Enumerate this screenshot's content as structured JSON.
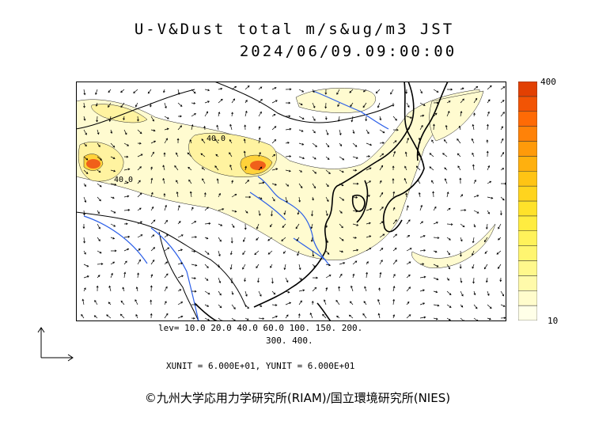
{
  "title_line1": "U-V&Dust total m/s&ug/m3 JST",
  "title_line2": "2024/06/09.09:00:00",
  "colorbar": {
    "max_label": "400",
    "min_label": "10",
    "colors": [
      "#ffffe8",
      "#fffccc",
      "#fffaaa",
      "#fff88c",
      "#fff570",
      "#fff25a",
      "#ffec40",
      "#ffe22a",
      "#ffd41e",
      "#ffc414",
      "#ffb00e",
      "#ff9a0a",
      "#ff8208",
      "#ff6a05",
      "#f25404",
      "#e24002"
    ]
  },
  "levels_line1": "lev= 10.0 20.0 40.0 60.0 100. 150. 200.",
  "levels_line2": "300. 400.",
  "units_line": "XUNIT = 6.000E+01, YUNIT = 6.000E+01",
  "contour_label_a": "40.0",
  "contour_label_b": "40.0",
  "credit": "©九州大学応用力学研究所(RIAM)/国立環境研究所(NIES)"
}
